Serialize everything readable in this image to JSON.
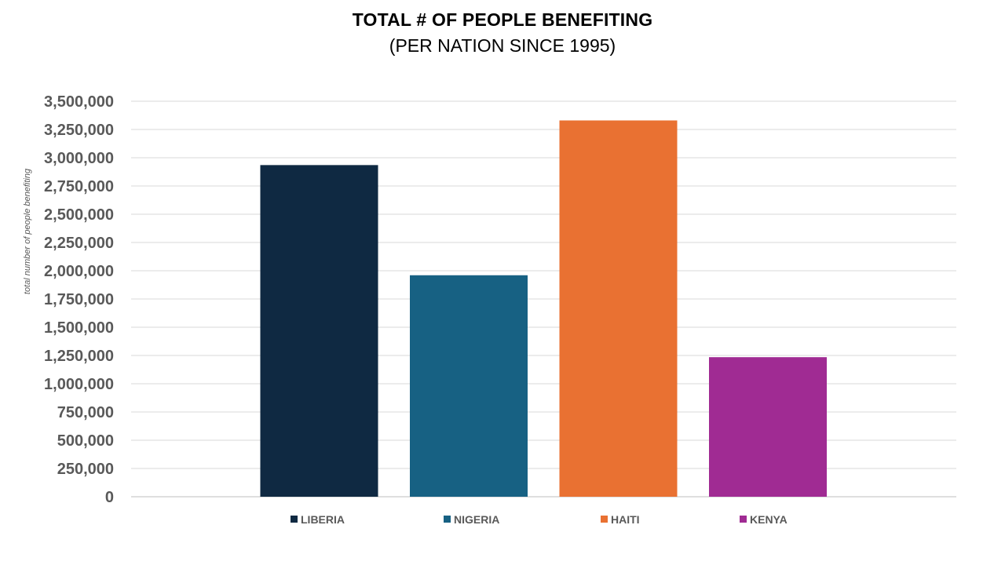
{
  "chart_data": {
    "type": "bar",
    "title": "TOTAL # OF PEOPLE BENEFITING",
    "subtitle": "(PER NATION SINCE 1995)",
    "xlabel": "",
    "ylabel": "total number of people benefiting",
    "categories": [
      "LIBERIA",
      "NIGERIA",
      "HAITI",
      "KENYA"
    ],
    "values": [
      2935000,
      1960000,
      3330000,
      1235000
    ],
    "colors": [
      "#0f2942",
      "#176183",
      "#e97132",
      "#a02b93"
    ],
    "ylim": [
      0,
      3500000
    ],
    "yticks": [
      0,
      250000,
      500000,
      750000,
      1000000,
      1250000,
      1500000,
      1750000,
      2000000,
      2250000,
      2500000,
      2750000,
      3000000,
      3250000,
      3500000
    ],
    "ytick_labels": [
      "0",
      "250,000",
      "500,000",
      "750,000",
      "1,000,000",
      "1,250,000",
      "1,500,000",
      "1,750,000",
      "2,000,000",
      "2,250,000",
      "2,500,000",
      "2,750,000",
      "3,000,000",
      "3,250,000",
      "3,500,000"
    ],
    "grid": true,
    "legend_position": "bottom"
  }
}
